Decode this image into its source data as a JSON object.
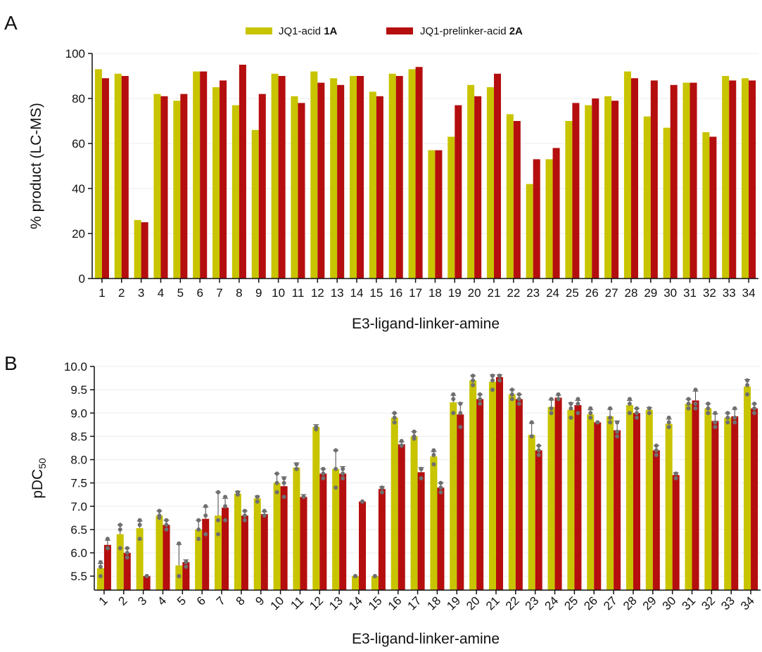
{
  "colors": {
    "series_1A": "#c8c400",
    "series_2A": "#b50e0e",
    "error": "#444444",
    "dots": "#6f6f6f",
    "grid": "#e6e6e6"
  },
  "chart_data": [
    {
      "panel": "A",
      "type": "bar",
      "legend_placement": "top",
      "grid": true,
      "xlabel": "E3-ligand-linker-amine",
      "ylabel": "% product (LC-MS)",
      "ylim": [
        0,
        100
      ],
      "yticks": [
        0,
        20,
        40,
        60,
        80,
        100
      ],
      "categories": [
        "1",
        "2",
        "3",
        "4",
        "5",
        "6",
        "7",
        "8",
        "9",
        "10",
        "11",
        "12",
        "13",
        "14",
        "15",
        "16",
        "17",
        "18",
        "19",
        "20",
        "21",
        "22",
        "23",
        "24",
        "25",
        "26",
        "27",
        "28",
        "29",
        "30",
        "31",
        "32",
        "33",
        "34"
      ],
      "series": [
        {
          "name_prefix": "JQ1-acid ",
          "name_bold": "1A",
          "values": [
            93,
            91,
            26,
            82,
            79,
            92,
            85,
            77,
            66,
            91,
            81,
            92,
            89,
            90,
            83,
            91,
            93,
            57,
            63,
            86,
            85,
            73,
            42,
            53,
            70,
            77,
            81,
            92,
            72,
            67,
            87,
            65,
            90,
            89
          ]
        },
        {
          "name_prefix": "JQ1-prelinker-acid ",
          "name_bold": "2A",
          "values": [
            89,
            90,
            25,
            81,
            82,
            92,
            88,
            95,
            82,
            90,
            78,
            87,
            86,
            90,
            81,
            90,
            94,
            57,
            77,
            81,
            91,
            70,
            53,
            58,
            78,
            80,
            79,
            89,
            88,
            86,
            87,
            63,
            88,
            88
          ]
        }
      ]
    },
    {
      "panel": "B",
      "type": "bar",
      "grid": true,
      "xlabel": "E3-ligand-linker-amine",
      "ylabel_base": "pDC",
      "ylabel_sub": "50",
      "ylim": [
        5.2,
        10.0
      ],
      "yticks": [
        "5.5",
        "6.0",
        "6.5",
        "7.0",
        "7.5",
        "8.0",
        "8.5",
        "9.0",
        "9.5",
        "10.0"
      ],
      "categories": [
        "1",
        "2",
        "3",
        "4",
        "5",
        "6",
        "7",
        "8",
        "9",
        "10",
        "11",
        "12",
        "13",
        "14",
        "15",
        "16",
        "17",
        "18",
        "19",
        "20",
        "21",
        "22",
        "23",
        "24",
        "25",
        "26",
        "27",
        "28",
        "29",
        "30",
        "31",
        "32",
        "33",
        "34"
      ],
      "series": [
        {
          "ref": "1A",
          "values": [
            5.67,
            6.4,
            6.53,
            6.8,
            5.73,
            6.5,
            6.8,
            7.27,
            7.17,
            7.5,
            7.83,
            8.7,
            7.8,
            5.5,
            5.5,
            8.9,
            8.5,
            8.07,
            9.23,
            9.7,
            9.67,
            9.4,
            8.53,
            9.13,
            9.07,
            8.97,
            8.93,
            9.17,
            9.07,
            8.77,
            9.2,
            9.1,
            8.9,
            9.57
          ],
          "errors": [
            0.1,
            0.2,
            0.15,
            0.1,
            0.45,
            0.2,
            0.5,
            0.05,
            0.05,
            0.2,
            0.1,
            0.05,
            0.4,
            0.0,
            0.0,
            0.1,
            0.1,
            0.1,
            0.15,
            0.1,
            0.15,
            0.1,
            0.25,
            0.15,
            0.15,
            0.1,
            0.15,
            0.1,
            0.05,
            0.1,
            0.1,
            0.1,
            0.1,
            0.15
          ],
          "points": [
            [
              5.5,
              5.7,
              5.8
            ],
            [
              6.1,
              6.5,
              6.6
            ],
            [
              6.3,
              6.6,
              6.7
            ],
            [
              6.75,
              6.8,
              6.9
            ],
            [
              5.5,
              5.5,
              6.2
            ],
            [
              6.3,
              6.5,
              6.7
            ],
            [
              6.4,
              6.7,
              7.3
            ],
            [
              7.25,
              7.3,
              7.3
            ],
            [
              7.1,
              7.2,
              7.2
            ],
            [
              7.3,
              7.5,
              7.7
            ],
            [
              7.8,
              7.8,
              7.9
            ],
            [
              8.65,
              8.7,
              8.7
            ],
            [
              7.4,
              7.8,
              8.2
            ],
            [
              5.5,
              5.5,
              5.5
            ],
            [
              5.5,
              5.5,
              5.5
            ],
            [
              8.8,
              8.9,
              9.0
            ],
            [
              8.45,
              8.5,
              8.6
            ],
            [
              7.9,
              8.1,
              8.2
            ],
            [
              9.0,
              9.3,
              9.4
            ],
            [
              9.6,
              9.7,
              9.8
            ],
            [
              9.5,
              9.7,
              9.8
            ],
            [
              9.3,
              9.4,
              9.5
            ],
            [
              8.5,
              8.5,
              8.8
            ],
            [
              9.0,
              9.1,
              9.3
            ],
            [
              8.9,
              9.1,
              9.2
            ],
            [
              8.9,
              9.0,
              9.1
            ],
            [
              8.8,
              8.9,
              9.1
            ],
            [
              9.0,
              9.2,
              9.3
            ],
            [
              9.0,
              9.1,
              9.1
            ],
            [
              8.7,
              8.8,
              8.9
            ],
            [
              9.1,
              9.2,
              9.3
            ],
            [
              9.0,
              9.1,
              9.2
            ],
            [
              8.8,
              8.9,
              9.0
            ],
            [
              9.4,
              9.6,
              9.7
            ]
          ]
        },
        {
          "ref": "2A",
          "values": [
            6.17,
            6.0,
            5.5,
            6.6,
            5.8,
            6.73,
            6.97,
            6.8,
            6.83,
            7.43,
            7.2,
            7.7,
            7.7,
            7.1,
            7.37,
            8.33,
            7.73,
            7.4,
            8.97,
            9.3,
            9.77,
            9.3,
            8.2,
            9.33,
            9.17,
            8.8,
            8.63,
            9.0,
            8.2,
            7.67,
            9.27,
            8.83,
            8.93,
            9.1
          ],
          "errors": [
            0.1,
            0.1,
            0.0,
            0.1,
            0.05,
            0.25,
            0.2,
            0.1,
            0.05,
            0.2,
            0.05,
            0.1,
            0.15,
            0.0,
            0.05,
            0.05,
            0.1,
            0.1,
            0.25,
            0.1,
            0.05,
            0.1,
            0.1,
            0.05,
            0.1,
            0.0,
            0.2,
            0.1,
            0.1,
            0.05,
            0.2,
            0.15,
            0.15,
            0.1
          ],
          "points": [
            [
              6.1,
              6.1,
              6.3
            ],
            [
              5.9,
              6.0,
              6.1
            ],
            [
              5.5,
              5.5,
              5.5
            ],
            [
              6.5,
              6.6,
              6.7
            ],
            [
              5.7,
              5.8,
              5.8
            ],
            [
              6.4,
              6.8,
              7.0
            ],
            [
              6.7,
              7.0,
              7.2
            ],
            [
              6.7,
              6.8,
              6.9
            ],
            [
              6.8,
              6.8,
              6.9
            ],
            [
              7.2,
              7.5,
              7.6
            ],
            [
              7.2,
              7.2,
              7.2
            ],
            [
              7.6,
              7.7,
              7.8
            ],
            [
              7.6,
              7.7,
              7.8
            ],
            [
              7.1,
              7.1,
              7.1
            ],
            [
              7.3,
              7.4,
              7.4
            ],
            [
              8.3,
              8.3,
              8.4
            ],
            [
              7.6,
              7.8,
              7.8
            ],
            [
              7.3,
              7.4,
              7.5
            ],
            [
              8.7,
              9.0,
              9.2
            ],
            [
              9.2,
              9.3,
              9.4
            ],
            [
              9.7,
              9.8,
              9.8
            ],
            [
              9.2,
              9.3,
              9.4
            ],
            [
              8.1,
              8.2,
              8.3
            ],
            [
              9.3,
              9.3,
              9.4
            ],
            [
              9.0,
              9.2,
              9.3
            ],
            [
              8.8,
              8.8,
              8.8
            ],
            [
              8.5,
              8.6,
              8.8
            ],
            [
              8.9,
              9.0,
              9.1
            ],
            [
              8.1,
              8.2,
              8.3
            ],
            [
              7.6,
              7.7,
              7.7
            ],
            [
              9.1,
              9.2,
              9.5
            ],
            [
              8.7,
              8.8,
              9.0
            ],
            [
              8.8,
              8.9,
              9.1
            ],
            [
              9.0,
              9.1,
              9.2
            ]
          ]
        }
      ]
    }
  ]
}
